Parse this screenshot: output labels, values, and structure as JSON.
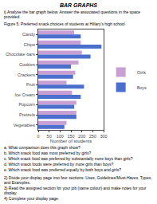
{
  "chart_data": {
    "type": "bar",
    "orientation": "horizontal",
    "title": "Figure 5. Preferred snack choices of students at Hillary's high school",
    "xlabel": "Number of students",
    "categories": [
      "Candy",
      "Chips",
      "Chocolate bars",
      "Cookies",
      "Crackers",
      "Fruit",
      "Ice Cream",
      "Popcorn",
      "Pretzels",
      "Vegetables"
    ],
    "series": [
      {
        "name": "Girls",
        "color": "#c8a0d4",
        "values": [
          165,
          195,
          200,
          185,
          170,
          130,
          155,
          175,
          175,
          130
        ]
      },
      {
        "name": "Boys",
        "color": "#4a6fcc",
        "values": [
          195,
          290,
          240,
          150,
          160,
          210,
          195,
          165,
          175,
          120
        ]
      }
    ],
    "xlim": [
      0,
      300
    ],
    "xticks": [
      0,
      50,
      100,
      150,
      200,
      250,
      300
    ],
    "grid": false,
    "legend": "right",
    "annotations": [
      "BAR GRAPHS",
      "i)   Analyse the bar graph below. Answer the associated questions in the space provided.",
      "a.    What comparison does this graph show?",
      "b.    Which snack food was most preferred by girls?",
      "c.    Which snack food was preferred by substantially more boys than girls?",
      "d.    Which snack foods were preferred by more girls than boys?",
      "e.    Which snack food was preferred equally by both boys and girls?",
      "2) Divide your display page into four sections: Uses, Guidelines/Must-Haves, Types, and Examples.",
      "3) Read the assigned section for your job (same colour) and make notes for your display.",
      "4) Complete your display page."
    ]
  }
}
